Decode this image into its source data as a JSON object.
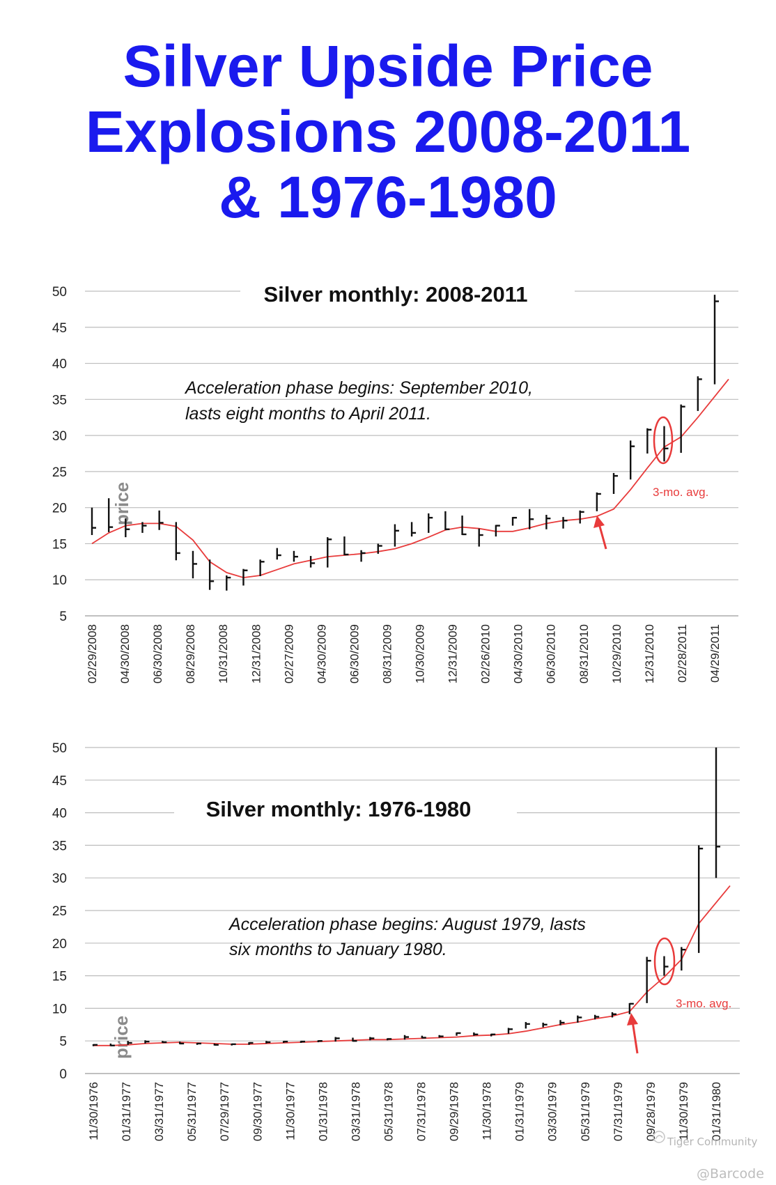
{
  "title_lines": [
    "Silver Upside Price",
    "Explosions 2008-2011",
    "& 1976-1980"
  ],
  "colors": {
    "title": "#1a1aee",
    "bars": "#111111",
    "avg_line": "#e83b3b",
    "grid": "#bdbdbd",
    "axis_text": "#222222"
  },
  "watermark": {
    "community": "Tiger Community",
    "user": "@Barcode"
  },
  "chart_data": [
    {
      "type": "ohlc",
      "title": "Silver monthly: 2008-2011",
      "ylabel": "price",
      "ylim": [
        5,
        50
      ],
      "yticks": [
        5,
        10,
        15,
        20,
        25,
        30,
        35,
        40,
        45,
        50
      ],
      "grid": true,
      "xtick_labels": [
        "02/29/2008",
        "04/30/2008",
        "06/30/2008",
        "08/29/2008",
        "10/31/2008",
        "12/31/2008",
        "02/27/2009",
        "04/30/2009",
        "06/30/2009",
        "08/31/2009",
        "10/30/2009",
        "12/31/2009",
        "02/26/2010",
        "04/30/2010",
        "06/30/2010",
        "08/31/2010",
        "10/29/2010",
        "12/31/2010",
        "02/28/2011",
        "04/29/2011"
      ],
      "bars": [
        {
          "high": 20.0,
          "low": 16.2,
          "close": 17.2
        },
        {
          "high": 21.3,
          "low": 16.6,
          "close": 17.3
        },
        {
          "high": 18.5,
          "low": 15.9,
          "close": 17.0
        },
        {
          "high": 18.0,
          "low": 16.5,
          "close": 17.5
        },
        {
          "high": 19.6,
          "low": 16.9,
          "close": 17.9
        },
        {
          "high": 18.0,
          "low": 12.7,
          "close": 13.7
        },
        {
          "high": 14.0,
          "low": 10.2,
          "close": 12.2
        },
        {
          "high": 12.8,
          "low": 8.6,
          "close": 9.8
        },
        {
          "high": 10.6,
          "low": 8.5,
          "close": 10.3
        },
        {
          "high": 11.5,
          "low": 9.2,
          "close": 11.3
        },
        {
          "high": 12.8,
          "low": 10.5,
          "close": 12.5
        },
        {
          "high": 14.4,
          "low": 12.8,
          "close": 13.4
        },
        {
          "high": 14.0,
          "low": 12.5,
          "close": 13.2
        },
        {
          "high": 13.3,
          "low": 11.7,
          "close": 12.3
        },
        {
          "high": 15.9,
          "low": 11.7,
          "close": 15.6
        },
        {
          "high": 16.0,
          "low": 13.4,
          "close": 13.5
        },
        {
          "high": 14.1,
          "low": 12.5,
          "close": 13.7
        },
        {
          "high": 15.0,
          "low": 13.6,
          "close": 14.7
        },
        {
          "high": 17.7,
          "low": 14.6,
          "close": 16.8
        },
        {
          "high": 18.0,
          "low": 16.0,
          "close": 16.5
        },
        {
          "high": 19.2,
          "low": 16.5,
          "close": 18.6
        },
        {
          "high": 19.5,
          "low": 16.9,
          "close": 17.0
        },
        {
          "high": 18.9,
          "low": 16.2,
          "close": 16.3
        },
        {
          "high": 17.1,
          "low": 14.6,
          "close": 16.2
        },
        {
          "high": 17.6,
          "low": 16.0,
          "close": 17.5
        },
        {
          "high": 18.7,
          "low": 17.5,
          "close": 18.6
        },
        {
          "high": 19.8,
          "low": 17.0,
          "close": 18.4
        },
        {
          "high": 19.0,
          "low": 17.0,
          "close": 18.5
        },
        {
          "high": 18.7,
          "low": 17.1,
          "close": 18.2
        },
        {
          "high": 19.6,
          "low": 17.8,
          "close": 19.4
        },
        {
          "high": 22.1,
          "low": 19.5,
          "close": 21.9
        },
        {
          "high": 24.8,
          "low": 21.9,
          "close": 24.4
        },
        {
          "high": 29.3,
          "low": 23.9,
          "close": 28.5
        },
        {
          "high": 31.0,
          "low": 27.5,
          "close": 30.8
        },
        {
          "high": 31.3,
          "low": 26.4,
          "close": 28.2
        },
        {
          "high": 34.3,
          "low": 27.6,
          "close": 34.0
        },
        {
          "high": 38.2,
          "low": 33.4,
          "close": 37.8
        },
        {
          "high": 49.5,
          "low": 37.1,
          "close": 48.6
        }
      ],
      "avg_label": "3-mo. avg.",
      "avg_values": [
        15.0,
        16.5,
        17.5,
        17.8,
        17.8,
        17.4,
        15.5,
        12.5,
        11.0,
        10.3,
        10.6,
        11.4,
        12.2,
        12.7,
        13.2,
        13.4,
        13.6,
        13.9,
        14.3,
        15.0,
        15.9,
        16.9,
        17.3,
        17.1,
        16.7,
        16.7,
        17.2,
        17.8,
        18.2,
        18.4,
        18.8,
        19.8,
        22.5,
        25.5,
        28.4,
        29.8,
        32.5,
        37.8
      ],
      "annotation": [
        "Acceleration phase begins: September 2010,",
        "lasts eight months to April 2011."
      ]
    },
    {
      "type": "ohlc",
      "title": "Silver monthly: 1976-1980",
      "ylabel": "price",
      "ylim": [
        0,
        50
      ],
      "yticks": [
        0,
        5,
        10,
        15,
        20,
        25,
        30,
        35,
        40,
        45,
        50
      ],
      "grid": true,
      "xtick_labels": [
        "11/30/1976",
        "01/31/1977",
        "03/31/1977",
        "05/31/1977",
        "07/29/1977",
        "09/30/1977",
        "11/30/1977",
        "01/31/1978",
        "03/31/1978",
        "05/31/1978",
        "07/31/1978",
        "09/29/1978",
        "11/30/1978",
        "01/31/1979",
        "03/30/1979",
        "05/31/1979",
        "07/31/1979",
        "09/28/1979",
        "11/30/1979",
        "01/31/1980"
      ],
      "bars": [
        {
          "high": 4.5,
          "low": 4.2,
          "close": 4.4
        },
        {
          "high": 4.6,
          "low": 4.2,
          "close": 4.3
        },
        {
          "high": 5.0,
          "low": 4.4,
          "close": 4.7
        },
        {
          "high": 5.1,
          "low": 4.6,
          "close": 4.9
        },
        {
          "high": 5.0,
          "low": 4.7,
          "close": 4.8
        },
        {
          "high": 4.9,
          "low": 4.5,
          "close": 4.6
        },
        {
          "high": 4.7,
          "low": 4.4,
          "close": 4.6
        },
        {
          "high": 4.6,
          "low": 4.3,
          "close": 4.4
        },
        {
          "high": 4.6,
          "low": 4.3,
          "close": 4.5
        },
        {
          "high": 4.8,
          "low": 4.4,
          "close": 4.7
        },
        {
          "high": 5.0,
          "low": 4.6,
          "close": 4.8
        },
        {
          "high": 5.0,
          "low": 4.7,
          "close": 4.9
        },
        {
          "high": 5.0,
          "low": 4.7,
          "close": 4.9
        },
        {
          "high": 5.1,
          "low": 4.8,
          "close": 5.0
        },
        {
          "high": 5.6,
          "low": 4.9,
          "close": 5.4
        },
        {
          "high": 5.5,
          "low": 4.9,
          "close": 5.0
        },
        {
          "high": 5.6,
          "low": 5.1,
          "close": 5.4
        },
        {
          "high": 5.4,
          "low": 5.1,
          "close": 5.3
        },
        {
          "high": 5.9,
          "low": 5.2,
          "close": 5.6
        },
        {
          "high": 5.8,
          "low": 5.4,
          "close": 5.5
        },
        {
          "high": 5.9,
          "low": 5.5,
          "close": 5.7
        },
        {
          "high": 6.3,
          "low": 5.8,
          "close": 6.2
        },
        {
          "high": 6.3,
          "low": 5.8,
          "close": 6.0
        },
        {
          "high": 6.1,
          "low": 5.7,
          "close": 6.0
        },
        {
          "high": 7.0,
          "low": 6.1,
          "close": 6.8
        },
        {
          "high": 7.9,
          "low": 6.9,
          "close": 7.6
        },
        {
          "high": 7.8,
          "low": 7.1,
          "close": 7.5
        },
        {
          "high": 8.2,
          "low": 7.4,
          "close": 7.8
        },
        {
          "high": 8.9,
          "low": 7.8,
          "close": 8.6
        },
        {
          "high": 9.0,
          "low": 8.3,
          "close": 8.7
        },
        {
          "high": 9.4,
          "low": 8.6,
          "close": 9.1
        },
        {
          "high": 10.8,
          "low": 9.1,
          "close": 10.7
        },
        {
          "high": 17.9,
          "low": 10.8,
          "close": 17.3
        },
        {
          "high": 18.0,
          "low": 15.0,
          "close": 16.4
        },
        {
          "high": 19.4,
          "low": 15.8,
          "close": 19.0
        },
        {
          "high": 35.0,
          "low": 18.5,
          "close": 34.5
        },
        {
          "high": 50.0,
          "low": 30.0,
          "close": 34.8
        }
      ],
      "avg_label": "3-mo. avg.",
      "avg_values": [
        4.3,
        4.3,
        4.4,
        4.6,
        4.7,
        4.8,
        4.7,
        4.6,
        4.5,
        4.5,
        4.6,
        4.7,
        4.8,
        4.9,
        5.0,
        5.1,
        5.2,
        5.2,
        5.3,
        5.4,
        5.5,
        5.6,
        5.8,
        5.9,
        6.1,
        6.5,
        7.0,
        7.5,
        7.9,
        8.4,
        8.8,
        9.5,
        12.5,
        14.8,
        17.5,
        23.0,
        28.8
      ],
      "annotation": [
        "Acceleration phase begins: August 1979, lasts",
        "six months to January 1980."
      ]
    }
  ]
}
